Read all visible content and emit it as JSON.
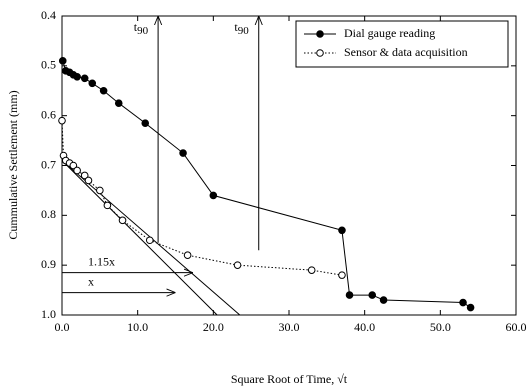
{
  "chart_data": {
    "type": "line",
    "x_label": "Square Root of Time, √t",
    "y_label": "Cummulative Settlement (mm)",
    "xlim": [
      0,
      60
    ],
    "ylim": [
      0.4,
      1
    ],
    "y_inverted": true,
    "xticks": [
      {
        "value": 0,
        "label": "0.0"
      },
      {
        "value": 10,
        "label": "10.0"
      },
      {
        "value": 20,
        "label": "20.0"
      },
      {
        "value": 30,
        "label": "30.0"
      },
      {
        "value": 40,
        "label": "40.0"
      },
      {
        "value": 50,
        "label": "50.0"
      },
      {
        "value": 60,
        "label": "60.0"
      }
    ],
    "yticks": [
      0.4,
      0.5,
      0.6,
      0.7,
      0.8,
      0.9,
      {
        "value": 1,
        "label": "1.0"
      }
    ],
    "legend": "upper right",
    "series": [
      {
        "name": "Dial gauge reading",
        "color": "#000000",
        "marker": "filled",
        "line_style": "solid",
        "x": [
          0.1,
          0.5,
          1,
          1.5,
          2,
          3,
          4,
          5.5,
          7.5,
          11,
          16,
          20,
          37,
          38,
          41,
          42.5,
          53,
          54
        ],
        "values": [
          0.49,
          0.51,
          0.513,
          0.518,
          0.522,
          0.525,
          0.535,
          0.55,
          0.575,
          0.615,
          0.675,
          0.76,
          0.83,
          0.96,
          0.96,
          0.97,
          0.975,
          0.985
        ]
      },
      {
        "name": "Sensor & data acquisition",
        "color": "#000000",
        "marker": "open",
        "line_style": "dotted",
        "x": [
          0,
          0.2,
          0.5,
          1,
          1.5,
          2,
          3,
          3.5,
          5,
          6,
          8,
          11.6,
          16.6,
          23.2,
          33,
          37
        ],
        "values": [
          0.61,
          0.68,
          0.69,
          0.695,
          0.7,
          0.71,
          0.72,
          0.73,
          0.75,
          0.78,
          0.81,
          0.85,
          0.88,
          0.9,
          0.91,
          0.92
        ]
      }
    ],
    "t90_markers": [
      {
        "text": "t",
        "subscript": "90",
        "x": 12.7,
        "y_from": 0.855
      },
      {
        "text": "t",
        "subscript": "90",
        "x": 26,
        "y_from": 0.87
      }
    ],
    "offset_arrows": [
      {
        "label": "1.15x",
        "y": 0.915,
        "x_from": 0,
        "x_to": 17.3
      },
      {
        "label": "x",
        "y": 0.955,
        "x_from": 0,
        "x_to": 15
      }
    ],
    "tangent_lines": [
      {
        "x": [
          0,
          20.5
        ],
        "y": [
          0.69,
          1
        ]
      },
      {
        "x": [
          0,
          23.5
        ],
        "y": [
          0.69,
          1
        ]
      }
    ]
  }
}
